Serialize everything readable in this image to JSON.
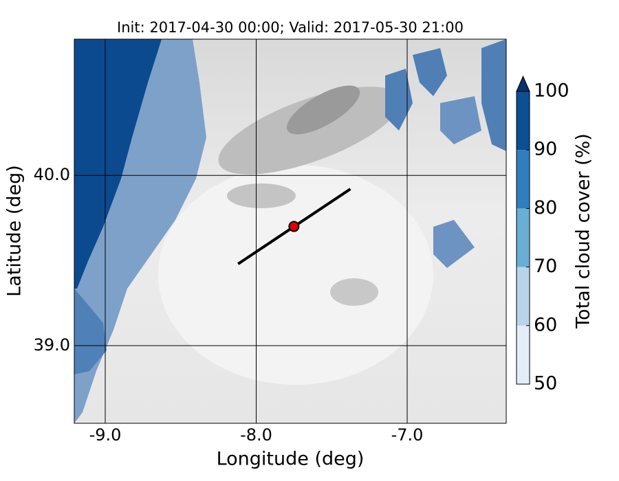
{
  "chart_data": {
    "type": "map",
    "title": "Init: 2017-04-30 00:00; Valid: 2017-05-30 21:00",
    "xlabel": "Longitude (deg)",
    "ylabel": "Latitude (deg)",
    "xlim": [
      -9.205,
      -6.344
    ],
    "ylim": [
      38.544,
      40.8
    ],
    "xticks": [
      {
        "value": -9,
        "label": "-9.0"
      },
      {
        "value": -8,
        "label": "-8.0"
      },
      {
        "value": -7,
        "label": "-7.0"
      }
    ],
    "yticks": [
      {
        "value": 39,
        "label": "39.0"
      },
      {
        "value": 40,
        "label": "40.0"
      }
    ],
    "grid": true,
    "transect": {
      "x": [
        -8.12,
        -7.376
      ],
      "y": [
        39.48,
        39.92
      ],
      "color": "#000000"
    },
    "marker": {
      "x": -7.75,
      "y": 39.7,
      "color": "#e00000"
    },
    "colorbar": {
      "label": "Total cloud cover (%)",
      "ticks": [
        50,
        60,
        70,
        80,
        90,
        100
      ],
      "colors": [
        "#e3edf7",
        "#b9d4ea",
        "#6aaed6",
        "#2f7fbf",
        "#0b4f94"
      ],
      "extend_color": "#08306b"
    }
  }
}
